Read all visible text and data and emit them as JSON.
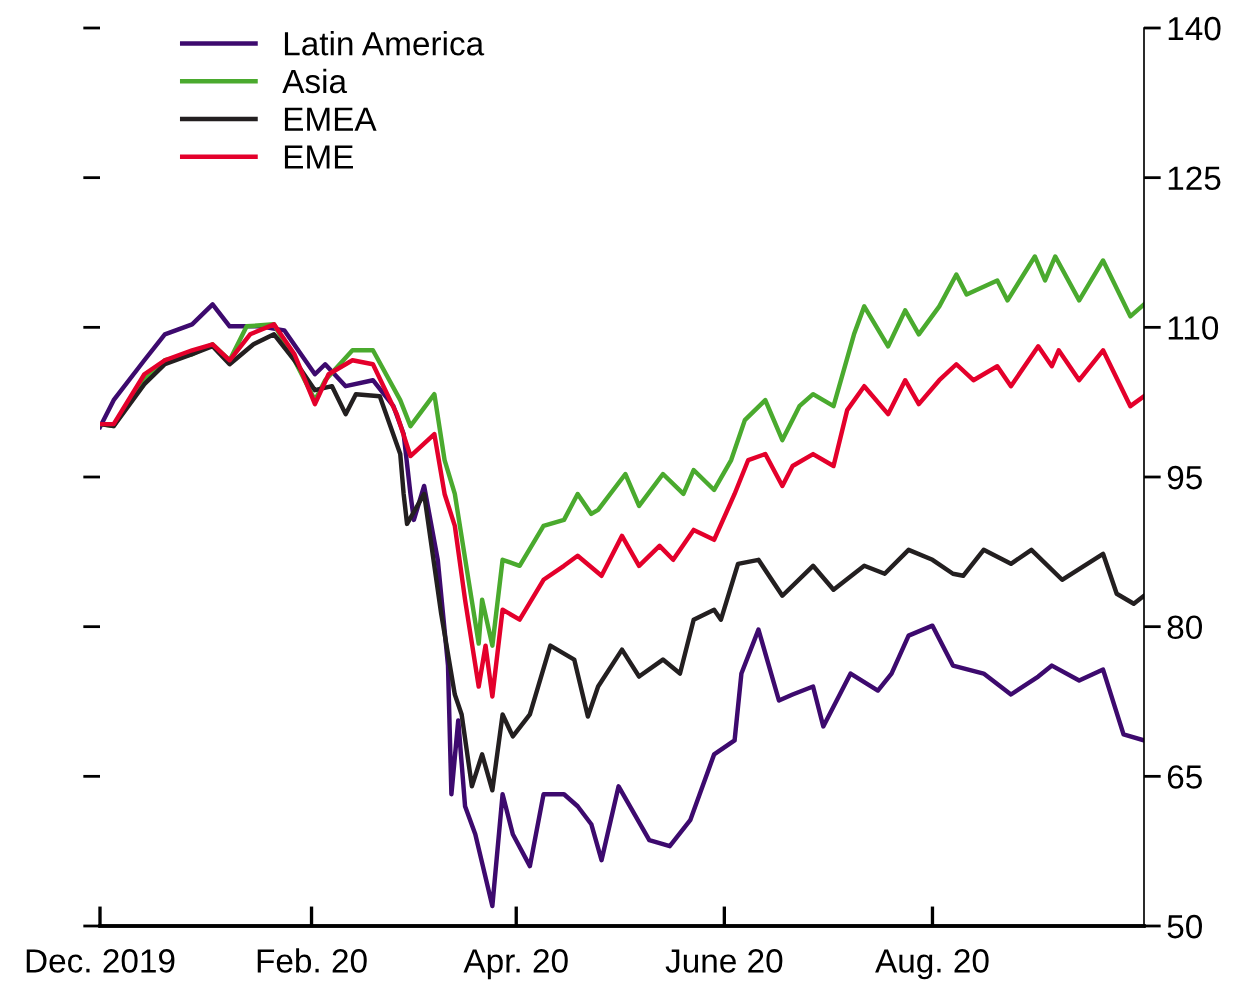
{
  "chart_data": {
    "type": "line",
    "legend": "top left",
    "grid": false,
    "line_style": "solid",
    "marker": "none",
    "xlim": [
      "2019-12-01",
      "2020-10-02"
    ],
    "xticks": [
      {
        "value": "2019-12-01",
        "label": "Dec. 2019"
      },
      {
        "value": "2020-02-01",
        "label": "Feb. 20"
      },
      {
        "value": "2020-04-01",
        "label": "Apr. 20"
      },
      {
        "value": "2020-06-01",
        "label": "June 20"
      },
      {
        "value": "2020-08-01",
        "label": "Aug. 20"
      }
    ],
    "y2lim": [
      50,
      140
    ],
    "y2ticks": [
      50,
      65,
      80,
      95,
      110,
      125,
      140
    ],
    "series": [
      {
        "name": "Latin America",
        "color": "#3d0a6e",
        "axis": "y2",
        "x": [
          "2019-12-01",
          "2019-12-05",
          "2019-12-14",
          "2019-12-20",
          "2019-12-28",
          "2020-01-03",
          "2020-01-08",
          "2020-01-17",
          "2020-01-24",
          "2020-02-02",
          "2020-02-05",
          "2020-02-11",
          "2020-02-19",
          "2020-02-25",
          "2020-02-28",
          "2020-03-01",
          "2020-03-02",
          "2020-03-05",
          "2020-03-09",
          "2020-03-12",
          "2020-03-13",
          "2020-03-15",
          "2020-03-17",
          "2020-03-20",
          "2020-03-25",
          "2020-03-28",
          "2020-03-31",
          "2020-04-05",
          "2020-04-09",
          "2020-04-15",
          "2020-04-19",
          "2020-04-23",
          "2020-04-26",
          "2020-05-01",
          "2020-05-10",
          "2020-05-16",
          "2020-05-22",
          "2020-05-29",
          "2020-06-04",
          "2020-06-06",
          "2020-06-11",
          "2020-06-17",
          "2020-06-21",
          "2020-06-27",
          "2020-06-30",
          "2020-07-08",
          "2020-07-16",
          "2020-07-20",
          "2020-07-25",
          "2020-08-01",
          "2020-08-07",
          "2020-08-16",
          "2020-08-24",
          "2020-09-01",
          "2020-09-05",
          "2020-09-13",
          "2020-09-20",
          "2020-09-26",
          "2020-10-02"
        ],
        "values": [
          100,
          102.7,
          106.7,
          109.3,
          110.3,
          112.3,
          110.1,
          110.1,
          109.7,
          105.3,
          106.3,
          104.1,
          104.7,
          102.1,
          99.3,
          93.3,
          90.7,
          94.1,
          86.7,
          76.1,
          63.2,
          70.6,
          62.0,
          59.2,
          52.0,
          63.2,
          59.2,
          56.0,
          63.2,
          63.2,
          62.0,
          60.2,
          56.6,
          64.0,
          58.6,
          58.0,
          60.6,
          67.2,
          68.6,
          75.3,
          79.7,
          72.6,
          73.2,
          74.0,
          70.0,
          75.3,
          73.6,
          75.3,
          79.1,
          80.1,
          76.1,
          75.3,
          73.2,
          75.0,
          76.1,
          74.6,
          75.7,
          69.2,
          68.6
        ]
      },
      {
        "name": "Asia",
        "color": "#4aaa2e",
        "axis": "y2",
        "x": [
          "2019-12-01",
          "2019-12-05",
          "2019-12-14",
          "2019-12-20",
          "2019-12-28",
          "2020-01-03",
          "2020-01-08",
          "2020-01-13",
          "2020-01-21",
          "2020-01-27",
          "2020-02-02",
          "2020-02-05",
          "2020-02-13",
          "2020-02-19",
          "2020-02-27",
          "2020-03-01",
          "2020-03-08",
          "2020-03-11",
          "2020-03-14",
          "2020-03-18",
          "2020-03-21",
          "2020-03-22",
          "2020-03-25",
          "2020-03-28",
          "2020-04-02",
          "2020-04-09",
          "2020-04-15",
          "2020-04-19",
          "2020-04-23",
          "2020-04-25",
          "2020-05-03",
          "2020-05-07",
          "2020-05-14",
          "2020-05-20",
          "2020-05-23",
          "2020-05-29",
          "2020-06-03",
          "2020-06-07",
          "2020-06-13",
          "2020-06-18",
          "2020-06-23",
          "2020-06-27",
          "2020-07-03",
          "2020-07-09",
          "2020-07-12",
          "2020-07-19",
          "2020-07-24",
          "2020-07-28",
          "2020-08-03",
          "2020-08-08",
          "2020-08-11",
          "2020-08-20",
          "2020-08-23",
          "2020-08-31",
          "2020-09-03",
          "2020-09-06",
          "2020-09-13",
          "2020-09-20",
          "2020-09-28",
          "2020-10-02"
        ],
        "values": [
          100.3,
          100.1,
          104.7,
          106.7,
          107.3,
          108.3,
          106.7,
          110.1,
          110.3,
          106.7,
          102.7,
          104.7,
          107.7,
          107.7,
          102.7,
          100.1,
          103.3,
          96.7,
          93.3,
          84.7,
          78.3,
          82.7,
          78.1,
          86.7,
          86.1,
          90.1,
          90.7,
          93.3,
          91.3,
          91.7,
          95.3,
          92.1,
          95.3,
          93.3,
          95.7,
          93.7,
          96.7,
          100.7,
          102.7,
          98.7,
          102.1,
          103.3,
          102.1,
          109.3,
          112.1,
          108.1,
          111.7,
          109.3,
          112.1,
          115.3,
          113.3,
          114.7,
          112.7,
          117.1,
          114.7,
          117.1,
          112.7,
          116.7,
          111.1,
          112.3
        ]
      },
      {
        "name": "EMEA",
        "color": "#231f20",
        "axis": "y2",
        "x": [
          "2019-12-01",
          "2019-12-05",
          "2019-12-14",
          "2019-12-20",
          "2019-12-28",
          "2020-01-03",
          "2020-01-08",
          "2020-01-15",
          "2020-01-21",
          "2020-01-27",
          "2020-02-02",
          "2020-02-07",
          "2020-02-11",
          "2020-02-14",
          "2020-02-21",
          "2020-02-27",
          "2020-02-28",
          "2020-02-29",
          "2020-03-05",
          "2020-03-10",
          "2020-03-14",
          "2020-03-16",
          "2020-03-19",
          "2020-03-22",
          "2020-03-25",
          "2020-03-28",
          "2020-03-31",
          "2020-04-05",
          "2020-04-11",
          "2020-04-18",
          "2020-04-22",
          "2020-04-25",
          "2020-05-02",
          "2020-05-07",
          "2020-05-14",
          "2020-05-19",
          "2020-05-23",
          "2020-05-29",
          "2020-05-31",
          "2020-06-05",
          "2020-06-11",
          "2020-06-18",
          "2020-06-27",
          "2020-07-03",
          "2020-07-12",
          "2020-07-18",
          "2020-07-25",
          "2020-08-01",
          "2020-08-07",
          "2020-08-10",
          "2020-08-16",
          "2020-08-24",
          "2020-08-30",
          "2020-09-08",
          "2020-09-20",
          "2020-09-24",
          "2020-09-29",
          "2020-10-02"
        ],
        "values": [
          100.3,
          100.1,
          104.3,
          106.3,
          107.3,
          108.1,
          106.3,
          108.3,
          109.3,
          106.7,
          103.7,
          104.1,
          101.3,
          103.3,
          103.1,
          97.3,
          93.3,
          90.3,
          93.3,
          81.3,
          73.2,
          71.2,
          64.0,
          67.2,
          63.6,
          71.2,
          69.0,
          71.2,
          78.1,
          76.7,
          71.0,
          74.0,
          77.7,
          75.0,
          76.7,
          75.3,
          80.7,
          81.7,
          80.7,
          86.3,
          86.7,
          83.1,
          86.1,
          83.7,
          86.1,
          85.3,
          87.7,
          86.7,
          85.3,
          85.1,
          87.7,
          86.3,
          87.7,
          84.7,
          87.3,
          83.3,
          82.3,
          83.1
        ]
      },
      {
        "name": "EME",
        "color": "#e4002b",
        "axis": "y2",
        "x": [
          "2019-12-01",
          "2019-12-05",
          "2019-12-14",
          "2019-12-20",
          "2019-12-28",
          "2020-01-03",
          "2020-01-08",
          "2020-01-14",
          "2020-01-21",
          "2020-01-27",
          "2020-02-02",
          "2020-02-06",
          "2020-02-13",
          "2020-02-19",
          "2020-02-26",
          "2020-03-01",
          "2020-03-08",
          "2020-03-11",
          "2020-03-14",
          "2020-03-17",
          "2020-03-21",
          "2020-03-23",
          "2020-03-25",
          "2020-03-28",
          "2020-04-02",
          "2020-04-09",
          "2020-04-15",
          "2020-04-19",
          "2020-04-26",
          "2020-05-02",
          "2020-05-07",
          "2020-05-13",
          "2020-05-17",
          "2020-05-23",
          "2020-05-29",
          "2020-06-04",
          "2020-06-08",
          "2020-06-13",
          "2020-06-18",
          "2020-06-21",
          "2020-06-27",
          "2020-07-03",
          "2020-07-07",
          "2020-07-12",
          "2020-07-19",
          "2020-07-24",
          "2020-07-28",
          "2020-08-03",
          "2020-08-08",
          "2020-08-13",
          "2020-08-20",
          "2020-08-24",
          "2020-09-01",
          "2020-09-05",
          "2020-09-07",
          "2020-09-13",
          "2020-09-20",
          "2020-09-28",
          "2020-10-02"
        ],
        "values": [
          100.3,
          100.3,
          105.3,
          106.7,
          107.7,
          108.3,
          106.7,
          109.3,
          110.3,
          107.3,
          102.3,
          105.3,
          106.7,
          106.3,
          101.3,
          97.1,
          99.3,
          93.3,
          90.1,
          82.7,
          74.0,
          78.1,
          73.0,
          81.7,
          80.7,
          84.7,
          86.1,
          87.1,
          85.1,
          89.1,
          86.1,
          88.1,
          86.7,
          89.7,
          88.7,
          93.3,
          96.7,
          97.3,
          94.1,
          96.1,
          97.3,
          96.1,
          101.7,
          104.1,
          101.3,
          104.7,
          102.3,
          104.7,
          106.3,
          104.7,
          106.1,
          104.1,
          108.1,
          106.1,
          107.7,
          104.7,
          107.7,
          102.1,
          103.1
        ]
      }
    ]
  }
}
